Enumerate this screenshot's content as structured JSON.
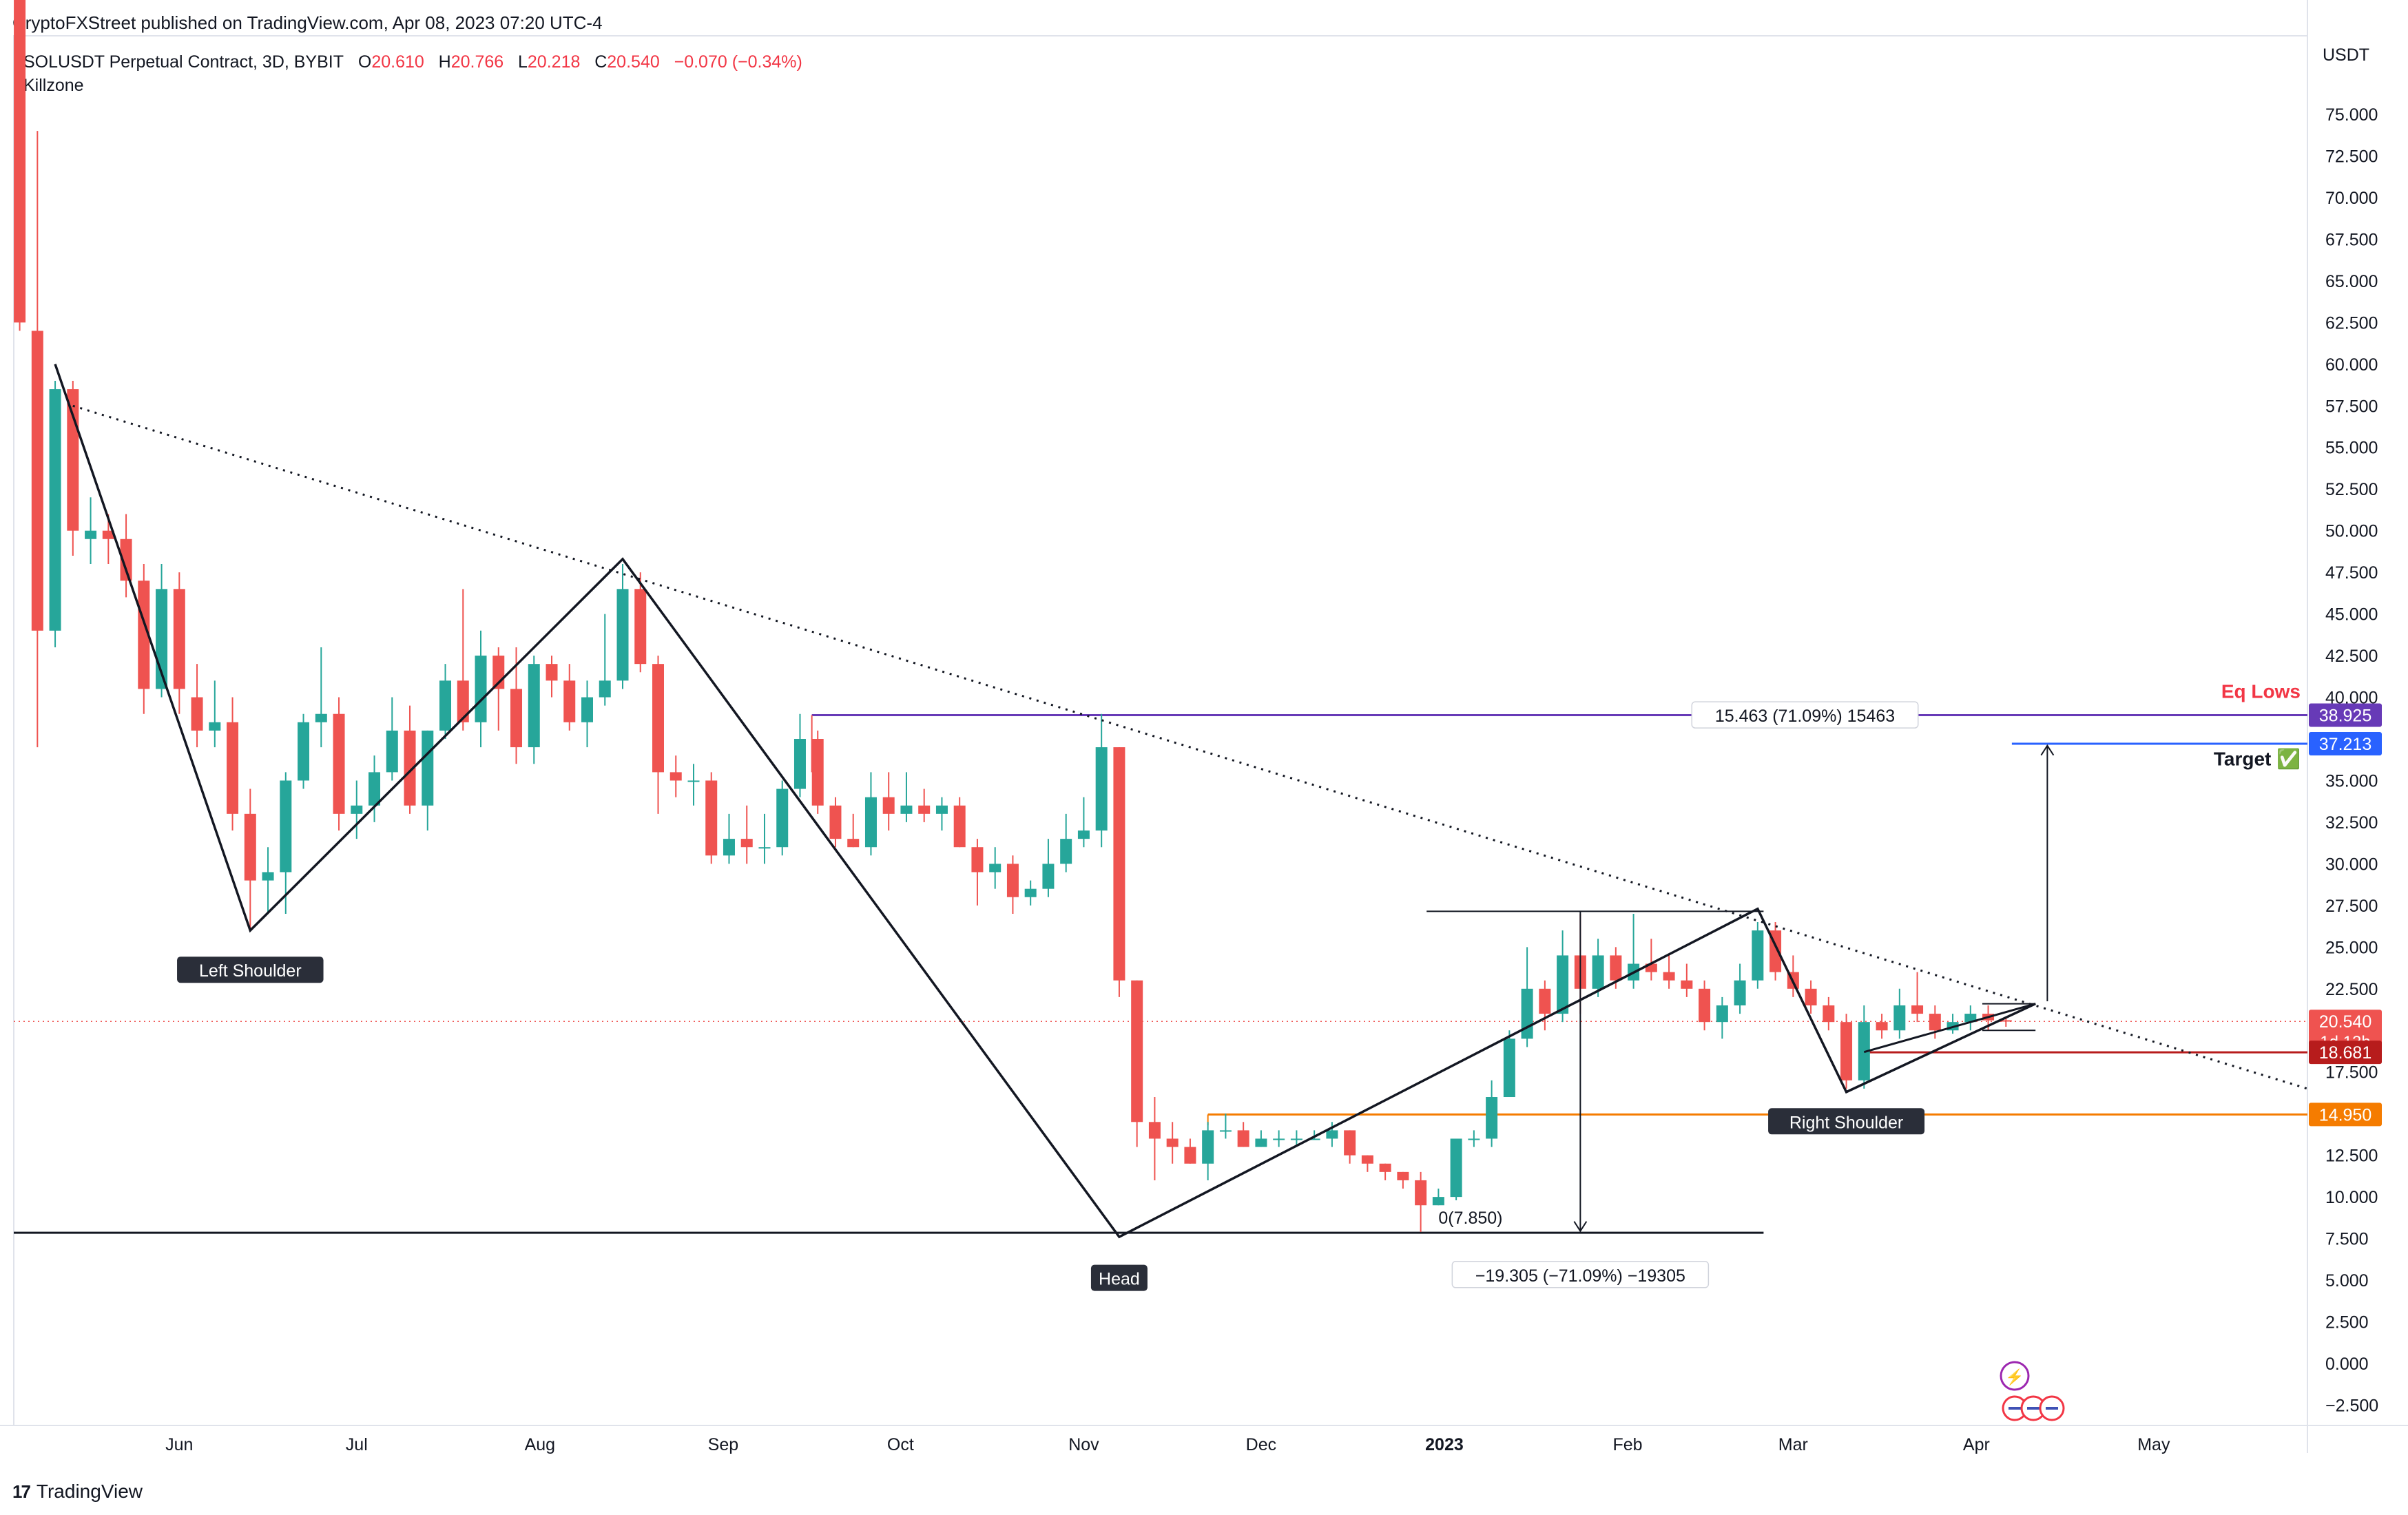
{
  "header": {
    "published": "CryptoFXStreet published on TradingView.com, Apr 08, 2023 07:20 UTC-4"
  },
  "legend": {
    "symbol": "SOLUSDT Perpetual Contract, 3D, BYBIT",
    "o_label": "O",
    "o": "20.610",
    "h_label": "H",
    "h": "20.766",
    "l_label": "L",
    "l": "20.218",
    "c_label": "C",
    "c": "20.540",
    "change": "−0.070 (−0.34%)",
    "indicator": "Killzone"
  },
  "footer": {
    "brand": "TradingView"
  },
  "colors": {
    "up": "#26a69a",
    "down": "#ef5350",
    "purple": "#673ab7",
    "blue": "#2962ff",
    "orange": "#f57c00",
    "darkred": "#b71c1c"
  },
  "chart_data": {
    "type": "candlestick",
    "title": "",
    "currency": "USDT",
    "ylim": [
      -5,
      82
    ],
    "y_ticks": [
      "75.000",
      "72.500",
      "70.000",
      "67.500",
      "65.000",
      "62.500",
      "60.000",
      "57.500",
      "55.000",
      "52.500",
      "50.000",
      "47.500",
      "45.000",
      "42.500",
      "40.000",
      "37.500",
      "35.000",
      "32.500",
      "30.000",
      "27.500",
      "25.000",
      "22.500",
      "20.000",
      "17.500",
      "15.000",
      "12.500",
      "10.000",
      "7.500",
      "5.000",
      "2.500",
      "0.000",
      "−2.500"
    ],
    "y_tick_values": [
      75,
      72.5,
      70,
      67.5,
      65,
      62.5,
      60,
      57.5,
      55,
      52.5,
      50,
      47.5,
      45,
      42.5,
      40,
      37.5,
      35,
      32.5,
      30,
      27.5,
      25,
      22.5,
      20,
      17.5,
      15,
      12.5,
      10,
      7.5,
      5,
      2.5,
      0,
      -2.5
    ],
    "x_labels": [
      {
        "label": "Jun",
        "x": "2022-06-01"
      },
      {
        "label": "Jul",
        "x": "2022-07-01"
      },
      {
        "label": "Aug",
        "x": "2022-08-01"
      },
      {
        "label": "Sep",
        "x": "2022-09-01"
      },
      {
        "label": "Oct",
        "x": "2022-10-01"
      },
      {
        "label": "Nov",
        "x": "2022-11-01"
      },
      {
        "label": "Dec",
        "x": "2022-12-01"
      },
      {
        "label": "2023",
        "x": "2023-01-01",
        "bold": true
      },
      {
        "label": "Feb",
        "x": "2023-02-01"
      },
      {
        "label": "Mar",
        "x": "2023-03-01"
      },
      {
        "label": "Apr",
        "x": "2023-04-01"
      },
      {
        "label": "May",
        "x": "2023-05-01"
      }
    ],
    "x_range": [
      "2022-05-04",
      "2023-05-27"
    ],
    "candles": [
      {
        "d": "2022-05-05",
        "o": 85.0,
        "h": 88.0,
        "l": 62.0,
        "c": 62.5
      },
      {
        "d": "2022-05-08",
        "o": 62.0,
        "h": 74.0,
        "l": 37.0,
        "c": 44.0
      },
      {
        "d": "2022-05-11",
        "o": 44.0,
        "h": 59.0,
        "l": 43.0,
        "c": 58.5
      },
      {
        "d": "2022-05-14",
        "o": 58.5,
        "h": 59.0,
        "l": 48.5,
        "c": 50.0
      },
      {
        "d": "2022-05-17",
        "o": 49.5,
        "h": 52.0,
        "l": 48.0,
        "c": 50.0
      },
      {
        "d": "2022-05-20",
        "o": 50.0,
        "h": 51.0,
        "l": 48.0,
        "c": 49.5
      },
      {
        "d": "2022-05-23",
        "o": 49.5,
        "h": 51.0,
        "l": 46.0,
        "c": 47.0
      },
      {
        "d": "2022-05-26",
        "o": 47.0,
        "h": 48.0,
        "l": 39.0,
        "c": 40.5
      },
      {
        "d": "2022-05-29",
        "o": 40.5,
        "h": 48.0,
        "l": 40.0,
        "c": 46.5
      },
      {
        "d": "2022-06-01",
        "o": 46.5,
        "h": 47.5,
        "l": 39.0,
        "c": 40.5
      },
      {
        "d": "2022-06-04",
        "o": 40.0,
        "h": 42.0,
        "l": 37.0,
        "c": 38.0
      },
      {
        "d": "2022-06-07",
        "o": 38.0,
        "h": 41.0,
        "l": 37.0,
        "c": 38.5
      },
      {
        "d": "2022-06-10",
        "o": 38.5,
        "h": 40.0,
        "l": 32.0,
        "c": 33.0
      },
      {
        "d": "2022-06-13",
        "o": 33.0,
        "h": 34.5,
        "l": 26.0,
        "c": 29.0
      },
      {
        "d": "2022-06-16",
        "o": 29.0,
        "h": 31.0,
        "l": 27.0,
        "c": 29.5
      },
      {
        "d": "2022-06-19",
        "o": 29.5,
        "h": 35.5,
        "l": 27.0,
        "c": 35.0
      },
      {
        "d": "2022-06-22",
        "o": 35.0,
        "h": 39.0,
        "l": 34.5,
        "c": 38.5
      },
      {
        "d": "2022-06-25",
        "o": 38.5,
        "h": 43.0,
        "l": 37.0,
        "c": 39.0
      },
      {
        "d": "2022-06-28",
        "o": 39.0,
        "h": 40.0,
        "l": 32.0,
        "c": 33.0
      },
      {
        "d": "2022-07-01",
        "o": 33.0,
        "h": 35.0,
        "l": 31.5,
        "c": 33.5
      },
      {
        "d": "2022-07-04",
        "o": 33.5,
        "h": 36.5,
        "l": 32.5,
        "c": 35.5
      },
      {
        "d": "2022-07-07",
        "o": 35.5,
        "h": 40.0,
        "l": 35.0,
        "c": 38.0
      },
      {
        "d": "2022-07-10",
        "o": 38.0,
        "h": 39.5,
        "l": 33.0,
        "c": 33.5
      },
      {
        "d": "2022-07-13",
        "o": 33.5,
        "h": 38.0,
        "l": 32.0,
        "c": 38.0
      },
      {
        "d": "2022-07-16",
        "o": 38.0,
        "h": 42.0,
        "l": 37.5,
        "c": 41.0
      },
      {
        "d": "2022-07-19",
        "o": 41.0,
        "h": 46.5,
        "l": 38.0,
        "c": 38.5
      },
      {
        "d": "2022-07-22",
        "o": 38.5,
        "h": 44.0,
        "l": 37.0,
        "c": 42.5
      },
      {
        "d": "2022-07-25",
        "o": 42.5,
        "h": 43.0,
        "l": 38.0,
        "c": 40.5
      },
      {
        "d": "2022-07-28",
        "o": 40.5,
        "h": 43.0,
        "l": 36.0,
        "c": 37.0
      },
      {
        "d": "2022-07-31",
        "o": 37.0,
        "h": 42.5,
        "l": 36.0,
        "c": 42.0
      },
      {
        "d": "2022-08-03",
        "o": 42.0,
        "h": 42.5,
        "l": 40.0,
        "c": 41.0
      },
      {
        "d": "2022-08-06",
        "o": 41.0,
        "h": 42.0,
        "l": 38.0,
        "c": 38.5
      },
      {
        "d": "2022-08-09",
        "o": 38.5,
        "h": 41.0,
        "l": 37.0,
        "c": 40.0
      },
      {
        "d": "2022-08-12",
        "o": 40.0,
        "h": 45.0,
        "l": 39.5,
        "c": 41.0
      },
      {
        "d": "2022-08-15",
        "o": 41.0,
        "h": 48.0,
        "l": 40.5,
        "c": 46.5
      },
      {
        "d": "2022-08-18",
        "o": 46.5,
        "h": 47.5,
        "l": 41.5,
        "c": 42.0
      },
      {
        "d": "2022-08-21",
        "o": 42.0,
        "h": 42.5,
        "l": 33.0,
        "c": 35.5
      },
      {
        "d": "2022-08-24",
        "o": 35.5,
        "h": 36.5,
        "l": 34.0,
        "c": 35.0
      },
      {
        "d": "2022-08-27",
        "o": 35.0,
        "h": 36.0,
        "l": 33.5,
        "c": 35.0
      },
      {
        "d": "2022-08-30",
        "o": 35.0,
        "h": 35.5,
        "l": 30.0,
        "c": 30.5
      },
      {
        "d": "2022-09-02",
        "o": 30.5,
        "h": 33.0,
        "l": 30.0,
        "c": 31.5
      },
      {
        "d": "2022-09-05",
        "o": 31.5,
        "h": 33.5,
        "l": 30.0,
        "c": 31.0
      },
      {
        "d": "2022-09-08",
        "o": 31.0,
        "h": 33.0,
        "l": 30.0,
        "c": 31.0
      },
      {
        "d": "2022-09-11",
        "o": 31.0,
        "h": 35.0,
        "l": 30.5,
        "c": 34.5
      },
      {
        "d": "2022-09-14",
        "o": 34.5,
        "h": 39.0,
        "l": 34.0,
        "c": 37.5
      },
      {
        "d": "2022-09-17",
        "o": 37.5,
        "h": 38.0,
        "l": 33.0,
        "c": 33.5
      },
      {
        "d": "2022-09-20",
        "o": 33.5,
        "h": 34.0,
        "l": 31.0,
        "c": 31.5
      },
      {
        "d": "2022-09-23",
        "o": 31.5,
        "h": 33.0,
        "l": 31.0,
        "c": 31.0
      },
      {
        "d": "2022-09-26",
        "o": 31.0,
        "h": 35.5,
        "l": 30.5,
        "c": 34.0
      },
      {
        "d": "2022-09-29",
        "o": 34.0,
        "h": 35.5,
        "l": 32.0,
        "c": 33.0
      },
      {
        "d": "2022-10-02",
        "o": 33.0,
        "h": 35.5,
        "l": 32.5,
        "c": 33.5
      },
      {
        "d": "2022-10-05",
        "o": 33.5,
        "h": 34.5,
        "l": 32.5,
        "c": 33.0
      },
      {
        "d": "2022-10-08",
        "o": 33.0,
        "h": 34.0,
        "l": 32.0,
        "c": 33.5
      },
      {
        "d": "2022-10-11",
        "o": 33.5,
        "h": 34.0,
        "l": 31.0,
        "c": 31.0
      },
      {
        "d": "2022-10-14",
        "o": 31.0,
        "h": 31.5,
        "l": 27.5,
        "c": 29.5
      },
      {
        "d": "2022-10-17",
        "o": 29.5,
        "h": 31.0,
        "l": 28.5,
        "c": 30.0
      },
      {
        "d": "2022-10-20",
        "o": 30.0,
        "h": 30.5,
        "l": 27.0,
        "c": 28.0
      },
      {
        "d": "2022-10-23",
        "o": 28.0,
        "h": 29.0,
        "l": 27.5,
        "c": 28.5
      },
      {
        "d": "2022-10-26",
        "o": 28.5,
        "h": 31.5,
        "l": 28.0,
        "c": 30.0
      },
      {
        "d": "2022-10-29",
        "o": 30.0,
        "h": 33.0,
        "l": 29.5,
        "c": 31.5
      },
      {
        "d": "2022-11-01",
        "o": 31.5,
        "h": 34.0,
        "l": 31.0,
        "c": 32.0
      },
      {
        "d": "2022-11-04",
        "o": 32.0,
        "h": 39.0,
        "l": 31.0,
        "c": 37.0
      },
      {
        "d": "2022-11-07",
        "o": 37.0,
        "h": 37.0,
        "l": 22.0,
        "c": 23.0
      },
      {
        "d": "2022-11-10",
        "o": 23.0,
        "h": 23.0,
        "l": 13.0,
        "c": 14.5
      },
      {
        "d": "2022-11-13",
        "o": 14.5,
        "h": 16.0,
        "l": 11.0,
        "c": 13.5
      },
      {
        "d": "2022-11-16",
        "o": 13.5,
        "h": 14.5,
        "l": 12.0,
        "c": 13.0
      },
      {
        "d": "2022-11-19",
        "o": 13.0,
        "h": 13.5,
        "l": 12.0,
        "c": 12.0
      },
      {
        "d": "2022-11-22",
        "o": 12.0,
        "h": 14.5,
        "l": 11.0,
        "c": 14.0
      },
      {
        "d": "2022-11-25",
        "o": 14.0,
        "h": 15.0,
        "l": 13.5,
        "c": 14.0
      },
      {
        "d": "2022-11-28",
        "o": 14.0,
        "h": 14.5,
        "l": 13.0,
        "c": 13.0
      },
      {
        "d": "2022-12-01",
        "o": 13.0,
        "h": 14.0,
        "l": 13.0,
        "c": 13.5
      },
      {
        "d": "2022-12-04",
        "o": 13.5,
        "h": 14.0,
        "l": 13.0,
        "c": 13.5
      },
      {
        "d": "2022-12-07",
        "o": 13.5,
        "h": 14.0,
        "l": 13.0,
        "c": 13.5
      },
      {
        "d": "2022-12-10",
        "o": 13.5,
        "h": 14.0,
        "l": 13.5,
        "c": 13.5
      },
      {
        "d": "2022-12-13",
        "o": 13.5,
        "h": 14.5,
        "l": 13.0,
        "c": 14.0
      },
      {
        "d": "2022-12-16",
        "o": 14.0,
        "h": 14.0,
        "l": 12.0,
        "c": 12.5
      },
      {
        "d": "2022-12-19",
        "o": 12.5,
        "h": 12.5,
        "l": 11.5,
        "c": 12.0
      },
      {
        "d": "2022-12-22",
        "o": 12.0,
        "h": 12.0,
        "l": 11.0,
        "c": 11.5
      },
      {
        "d": "2022-12-25",
        "o": 11.5,
        "h": 11.5,
        "l": 10.5,
        "c": 11.0
      },
      {
        "d": "2022-12-28",
        "o": 11.0,
        "h": 11.5,
        "l": 7.9,
        "c": 9.5
      },
      {
        "d": "2022-12-31",
        "o": 9.5,
        "h": 10.5,
        "l": 9.5,
        "c": 10.0
      },
      {
        "d": "2023-01-03",
        "o": 10.0,
        "h": 13.5,
        "l": 9.8,
        "c": 13.5
      },
      {
        "d": "2023-01-06",
        "o": 13.5,
        "h": 14.0,
        "l": 13.0,
        "c": 13.5
      },
      {
        "d": "2023-01-09",
        "o": 13.5,
        "h": 17.0,
        "l": 13.0,
        "c": 16.0
      },
      {
        "d": "2023-01-12",
        "o": 16.0,
        "h": 20.0,
        "l": 16.0,
        "c": 19.5
      },
      {
        "d": "2023-01-15",
        "o": 19.5,
        "h": 25.0,
        "l": 19.0,
        "c": 22.5
      },
      {
        "d": "2023-01-18",
        "o": 22.5,
        "h": 23.0,
        "l": 20.0,
        "c": 21.0
      },
      {
        "d": "2023-01-21",
        "o": 21.0,
        "h": 26.0,
        "l": 20.5,
        "c": 24.5
      },
      {
        "d": "2023-01-24",
        "o": 24.5,
        "h": 27.0,
        "l": 21.0,
        "c": 22.5
      },
      {
        "d": "2023-01-27",
        "o": 22.5,
        "h": 25.5,
        "l": 22.0,
        "c": 24.5
      },
      {
        "d": "2023-01-30",
        "o": 24.5,
        "h": 25.0,
        "l": 22.5,
        "c": 23.0
      },
      {
        "d": "2023-02-02",
        "o": 23.0,
        "h": 27.0,
        "l": 22.5,
        "c": 24.0
      },
      {
        "d": "2023-02-05",
        "o": 24.0,
        "h": 25.5,
        "l": 23.0,
        "c": 23.5
      },
      {
        "d": "2023-02-08",
        "o": 23.5,
        "h": 24.5,
        "l": 22.5,
        "c": 23.0
      },
      {
        "d": "2023-02-11",
        "o": 23.0,
        "h": 24.0,
        "l": 22.0,
        "c": 22.5
      },
      {
        "d": "2023-02-14",
        "o": 22.5,
        "h": 23.0,
        "l": 20.0,
        "c": 20.5
      },
      {
        "d": "2023-02-17",
        "o": 20.5,
        "h": 22.0,
        "l": 19.5,
        "c": 21.5
      },
      {
        "d": "2023-02-20",
        "o": 21.5,
        "h": 24.0,
        "l": 21.0,
        "c": 23.0
      },
      {
        "d": "2023-02-23",
        "o": 23.0,
        "h": 26.5,
        "l": 22.5,
        "c": 26.0
      },
      {
        "d": "2023-02-26",
        "o": 26.0,
        "h": 26.5,
        "l": 23.0,
        "c": 23.5
      },
      {
        "d": "2023-03-01",
        "o": 23.5,
        "h": 24.5,
        "l": 22.0,
        "c": 22.5
      },
      {
        "d": "2023-03-04",
        "o": 22.5,
        "h": 23.0,
        "l": 21.0,
        "c": 21.5
      },
      {
        "d": "2023-03-07",
        "o": 21.5,
        "h": 22.0,
        "l": 20.0,
        "c": 20.5
      },
      {
        "d": "2023-03-10",
        "o": 20.5,
        "h": 21.0,
        "l": 16.5,
        "c": 17.0
      },
      {
        "d": "2023-03-13",
        "o": 17.0,
        "h": 21.5,
        "l": 16.5,
        "c": 20.5
      },
      {
        "d": "2023-03-16",
        "o": 20.5,
        "h": 21.0,
        "l": 19.5,
        "c": 20.0
      },
      {
        "d": "2023-03-19",
        "o": 20.0,
        "h": 22.5,
        "l": 19.5,
        "c": 21.5
      },
      {
        "d": "2023-03-22",
        "o": 21.5,
        "h": 23.5,
        "l": 20.5,
        "c": 21.0
      },
      {
        "d": "2023-03-25",
        "o": 21.0,
        "h": 21.5,
        "l": 19.5,
        "c": 20.0
      },
      {
        "d": "2023-03-28",
        "o": 20.0,
        "h": 21.0,
        "l": 19.8,
        "c": 20.5
      },
      {
        "d": "2023-03-31",
        "o": 20.5,
        "h": 21.5,
        "l": 20.0,
        "c": 21.0
      },
      {
        "d": "2023-04-03",
        "o": 21.0,
        "h": 21.5,
        "l": 20.0,
        "c": 20.6
      },
      {
        "d": "2023-04-06",
        "o": 20.61,
        "h": 20.766,
        "l": 20.218,
        "c": 20.54
      }
    ],
    "price_labels": {
      "eq_lows": {
        "value": 38.925,
        "text": "38.925",
        "color": "#673ab7"
      },
      "target": {
        "value": 37.213,
        "text": "37.213",
        "color": "#2962ff"
      },
      "current": {
        "value": 20.54,
        "text": "20.540",
        "countdown": "1d 13h",
        "color": "#ef5350"
      },
      "support_red": {
        "value": 18.681,
        "text": "18.681",
        "color": "#b71c1c"
      },
      "support_orange": {
        "value": 14.95,
        "text": "14.950",
        "color": "#f57c00"
      }
    },
    "annotations": {
      "left_shoulder": {
        "text": "Left Shoulder",
        "x": "2022-06-13",
        "y": 26.0
      },
      "head": {
        "text": "Head",
        "x": "2022-11-07",
        "y": 7.6
      },
      "right_shoulder": {
        "text": "Right Shoulder",
        "x": "2023-03-10",
        "y": 16.2
      },
      "eq_lows": "Eq Lows",
      "target": "Target ✅",
      "measure_up": "15.463 (71.09%) 15463",
      "measure_down": "−19.305 (−71.09%) −19305",
      "fib_zero": "0(7.850)"
    },
    "grid": false,
    "legend_position": "top-left"
  }
}
